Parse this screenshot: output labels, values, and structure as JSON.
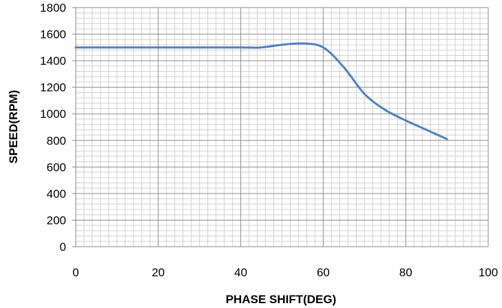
{
  "chart_data": {
    "type": "line",
    "title": "",
    "xlabel": "PHASE SHIFT(DEG)",
    "ylabel": "SPEED(RPM)",
    "xlim": [
      0,
      100
    ],
    "ylim": [
      0,
      1800
    ],
    "x_ticks": [
      0,
      20,
      40,
      60,
      80,
      100
    ],
    "y_ticks": [
      0,
      200,
      400,
      600,
      800,
      1000,
      1200,
      1400,
      1600,
      1800
    ],
    "grid": true,
    "legend": "none",
    "series": [
      {
        "color": "#4F81BD",
        "x": [
          0,
          10,
          20,
          30,
          40,
          45,
          50,
          55,
          60,
          65,
          70,
          75,
          80,
          85,
          90
        ],
        "y": [
          1500,
          1500,
          1500,
          1500,
          1500,
          1500,
          1520,
          1530,
          1500,
          1350,
          1150,
          1030,
          950,
          880,
          810
        ]
      }
    ]
  }
}
